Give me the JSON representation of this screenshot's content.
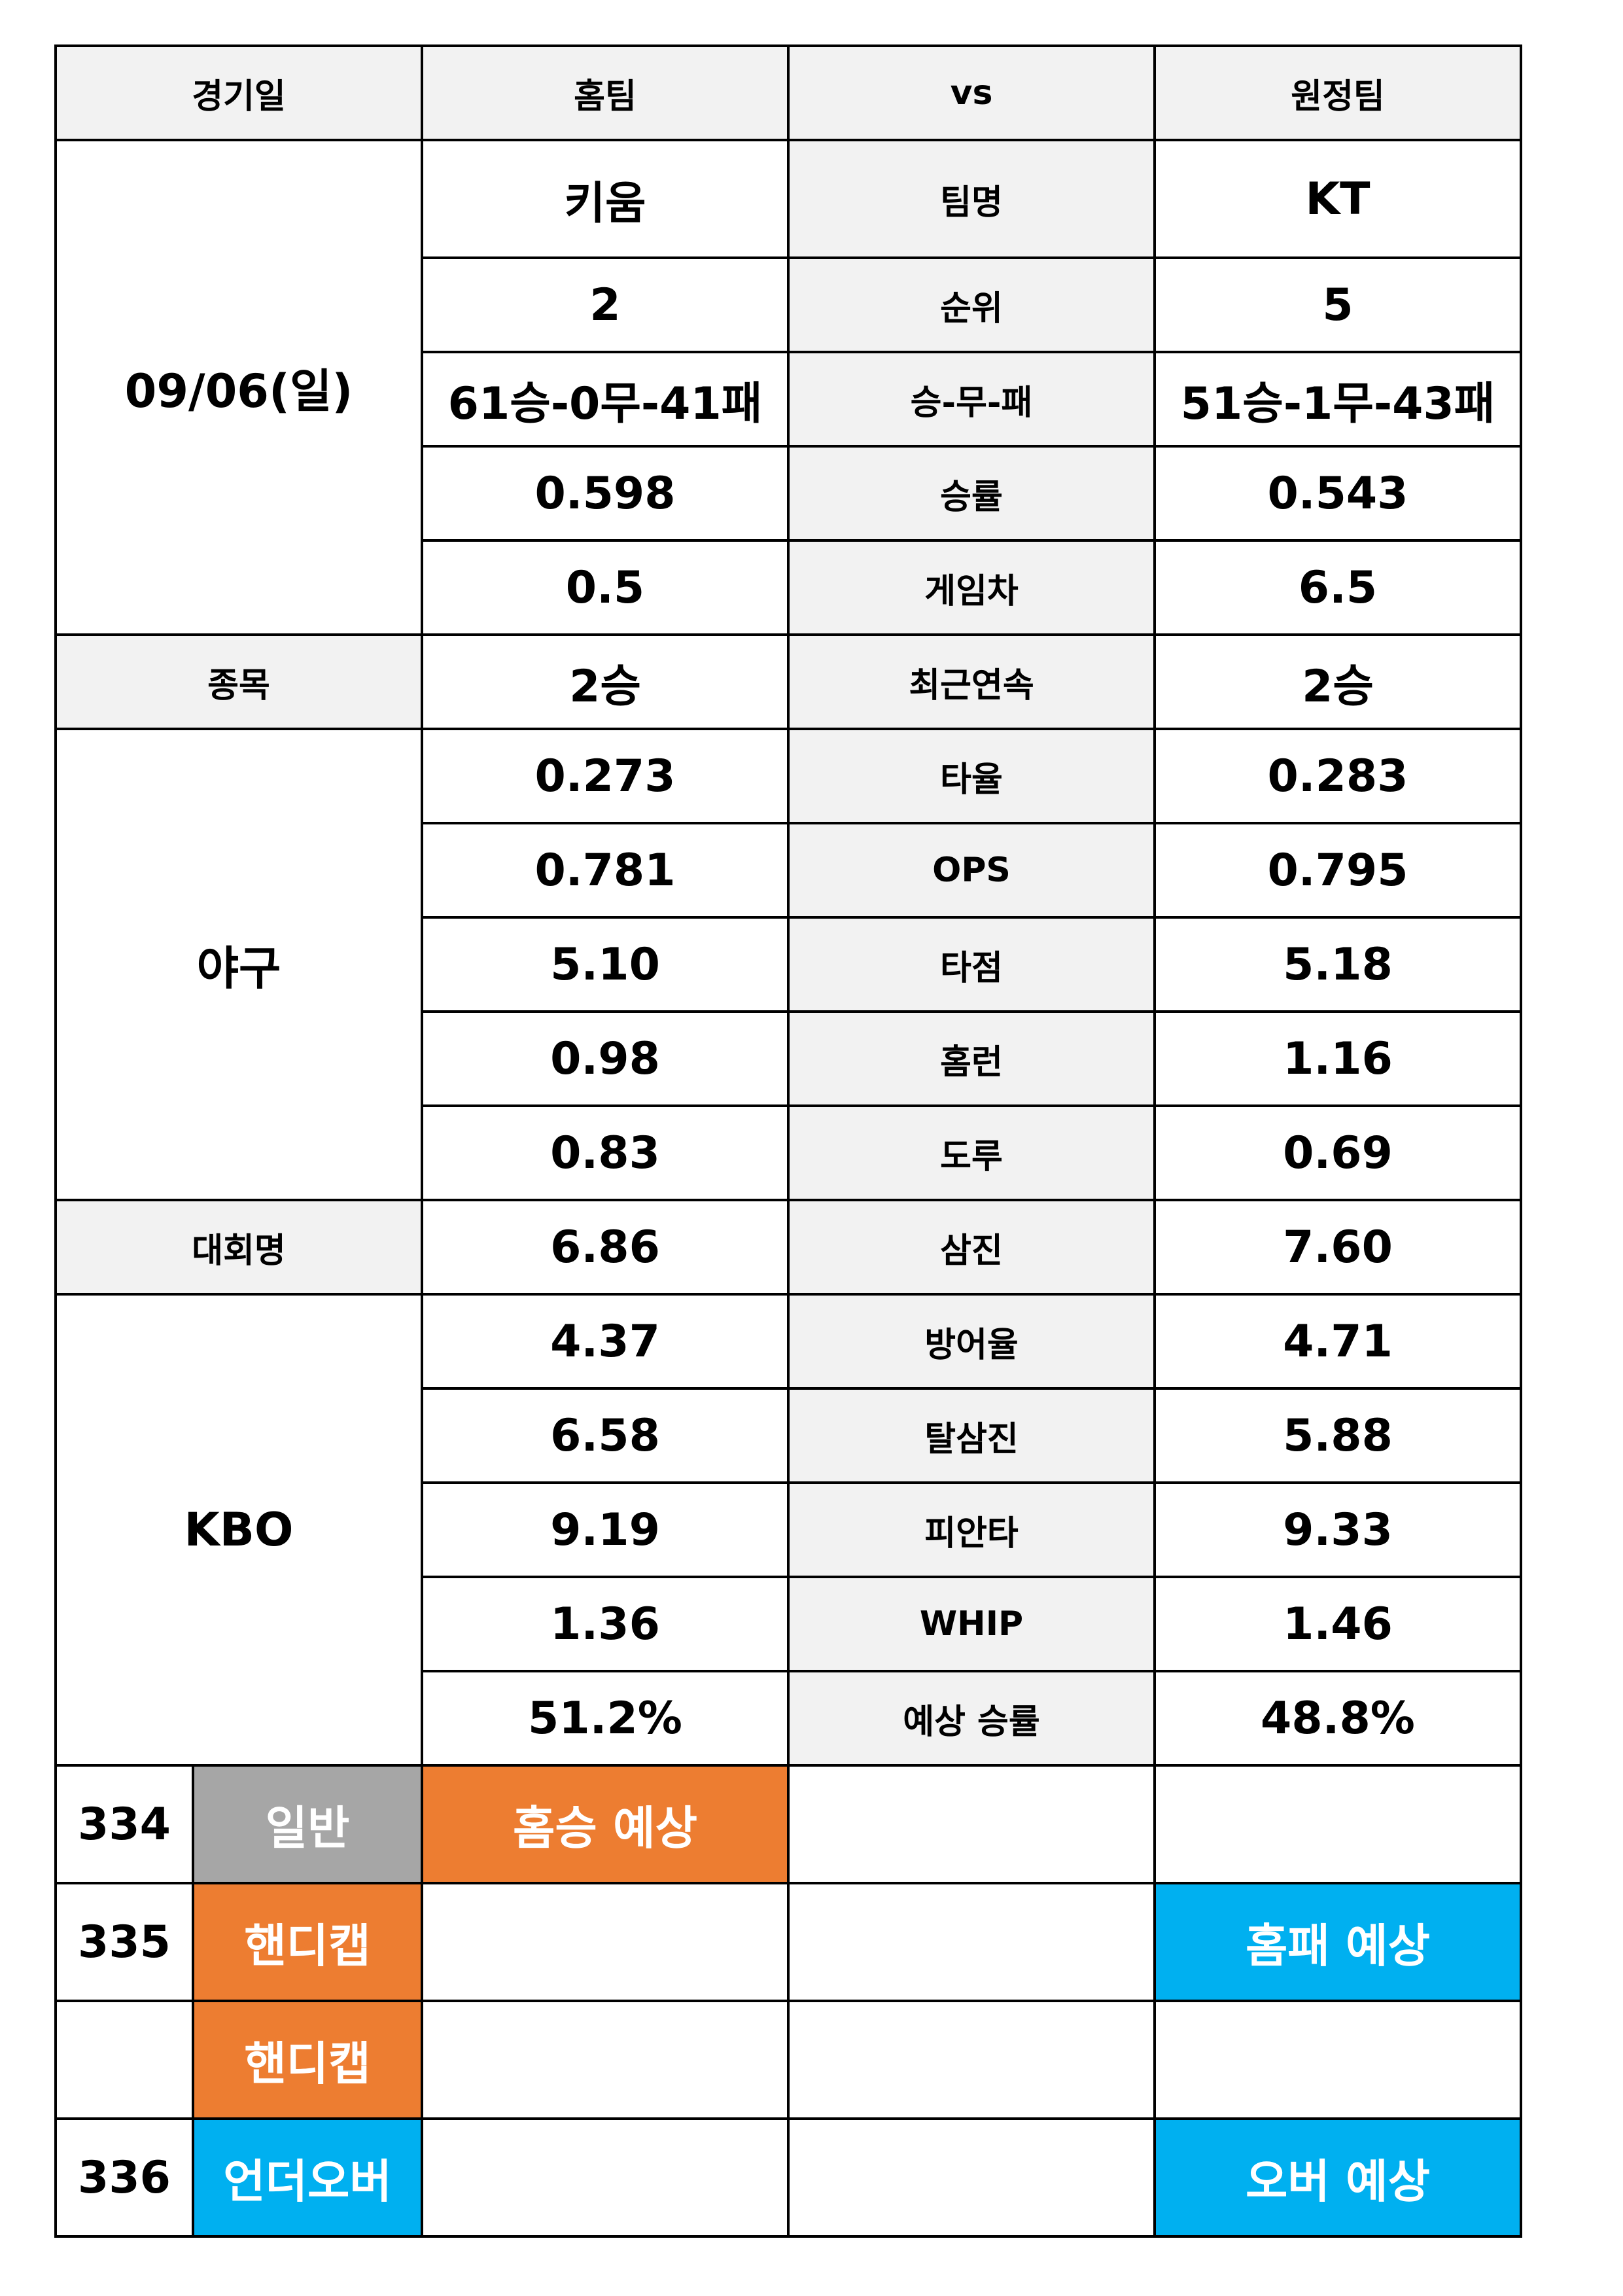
{
  "header": {
    "date": "경기일",
    "home": "홈팀",
    "vs": "vs",
    "away": "원정팀"
  },
  "date_value": "09/06(일)",
  "sport_label": "종목",
  "sport_value": "야구",
  "league_label": "대회명",
  "league_value": "KBO",
  "stats": [
    {
      "label": "팀명",
      "home": "키움",
      "away": "KT"
    },
    {
      "label": "순위",
      "home": "2",
      "away": "5"
    },
    {
      "label": "승-무-패",
      "home": "61승-0무-41패",
      "away": "51승-1무-43패"
    },
    {
      "label": "승률",
      "home": "0.598",
      "away": "0.543"
    },
    {
      "label": "게임차",
      "home": "0.5",
      "away": "6.5"
    },
    {
      "label": "최근연속",
      "home": "2승",
      "away": "2승"
    },
    {
      "label": "타율",
      "home": "0.273",
      "away": "0.283"
    },
    {
      "label": "OPS",
      "home": "0.781",
      "away": "0.795"
    },
    {
      "label": "타점",
      "home": "5.10",
      "away": "5.18"
    },
    {
      "label": "홈런",
      "home": "0.98",
      "away": "1.16"
    },
    {
      "label": "도루",
      "home": "0.83",
      "away": "0.69"
    },
    {
      "label": "삼진",
      "home": "6.86",
      "away": "7.60"
    },
    {
      "label": "방어율",
      "home": "4.37",
      "away": "4.71"
    },
    {
      "label": "탈삼진",
      "home": "6.58",
      "away": "5.88"
    },
    {
      "label": "피안타",
      "home": "9.19",
      "away": "9.33"
    },
    {
      "label": "WHIP",
      "home": "1.36",
      "away": "1.46"
    },
    {
      "label": "예상 승률",
      "home": "51.2%",
      "away": "48.8%"
    }
  ],
  "picks": [
    {
      "number": "334",
      "type": "일반",
      "home_pick": "홈승 예상",
      "vs_pick": "",
      "away_pick": ""
    },
    {
      "number": "335",
      "type": "핸디캡",
      "home_pick": "",
      "vs_pick": "",
      "away_pick": "홈패 예상"
    },
    {
      "number": "",
      "type": "핸디캡",
      "home_pick": "",
      "vs_pick": "",
      "away_pick": ""
    },
    {
      "number": "336",
      "type": "언더오버",
      "home_pick": "",
      "vs_pick": "",
      "away_pick": "오버 예상"
    }
  ],
  "colors": {
    "gray": "#a6a6a6",
    "orange": "#ed7d31",
    "blue": "#00b0f0",
    "label_bg": "#f2f2f2"
  }
}
